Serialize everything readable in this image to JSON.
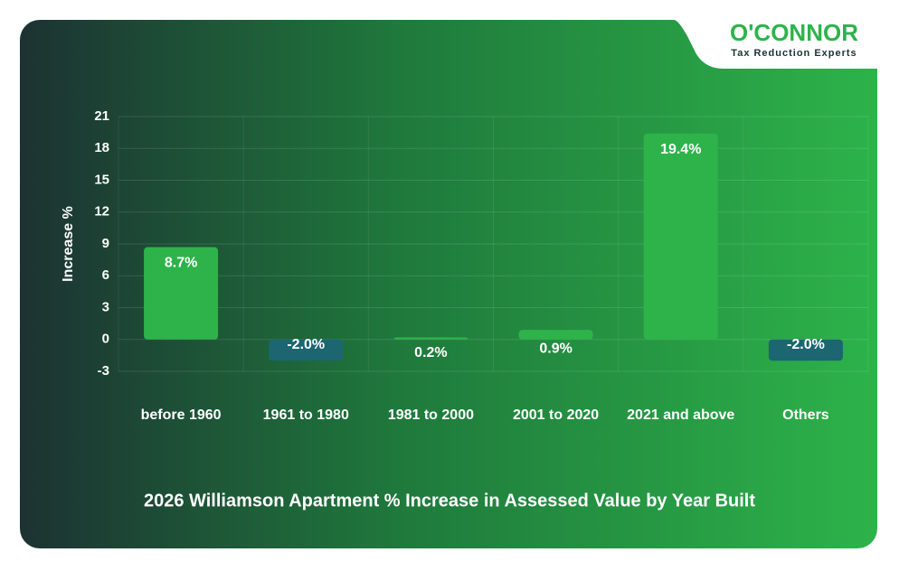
{
  "brand": {
    "name": "O'CONNOR",
    "tagline": "Tax Reduction Experts"
  },
  "chart_data": {
    "type": "bar",
    "title": "2026 Williamson Apartment % Increase in Assessed Value by Year Built",
    "y_label": "Increase %",
    "categories": [
      "before 1960",
      "1961 to 1980",
      "1981 to 2000",
      "2001 to 2020",
      "2021 and above",
      "Others"
    ],
    "values": [
      8.7,
      -2.0,
      0.2,
      0.9,
      19.4,
      -2.0
    ],
    "value_labels": [
      "8.7%",
      "-2.0%",
      "0.2%",
      "0.9%",
      "19.4%",
      "-2.0%"
    ],
    "colors": {
      "positive": "#2db34a",
      "negative": "#1b6670"
    },
    "ylim": [
      -3,
      21
    ],
    "yticks": [
      -3,
      0,
      3,
      6,
      9,
      12,
      15,
      18,
      21
    ],
    "grid": true
  }
}
